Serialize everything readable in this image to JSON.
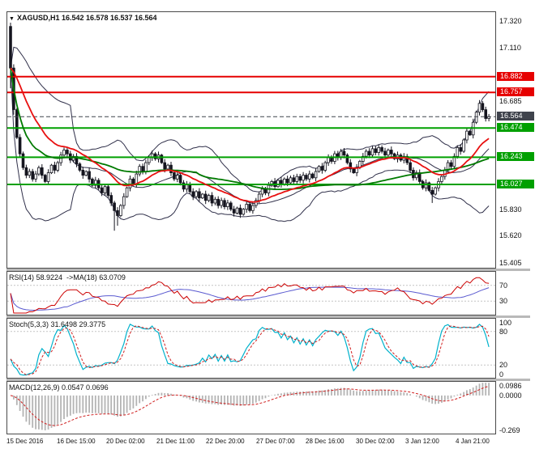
{
  "window": {
    "title": "XAGUSD,H1 16.542 16.578 16.537 16.564",
    "dropdown_icon": "▼"
  },
  "colors": {
    "up": "#ffffff",
    "down": "#15151f",
    "bollinger": "#30304a",
    "ma_fast": "#e81010",
    "ma_slow": "#007a00",
    "resistance": "#e60000",
    "support": "#00a000",
    "current": "#3f434c",
    "rsi": "#cc0000",
    "rsi_ma": "#5a5ad0",
    "stoch_main": "#00b2cc",
    "stoch_signal": "#d02020",
    "macd_hist": "#b4b4b4",
    "macd_signal": "#d02020"
  },
  "chart_data": {
    "type": "candlestick",
    "symbol": "XAGUSD",
    "timeframe": "H1",
    "current_ohlc": {
      "open": 16.542,
      "high": 16.578,
      "low": 16.537,
      "close": 16.564
    },
    "price_axis": {
      "range": [
        15.36,
        17.4
      ],
      "ticks": [
        17.32,
        17.11,
        16.685,
        15.83,
        15.62,
        15.405
      ]
    },
    "levels": [
      {
        "price": 16.882,
        "type": "resistance"
      },
      {
        "price": 16.757,
        "type": "resistance"
      },
      {
        "price": 16.564,
        "type": "current"
      },
      {
        "price": 16.474,
        "type": "support"
      },
      {
        "price": 16.243,
        "type": "support"
      },
      {
        "price": 16.027,
        "type": "support"
      }
    ],
    "time_labels": [
      "15 Dec 2016",
      "16 Dec 15:00",
      "20 Dec 02:00",
      "21 Dec 11:00",
      "22 Dec 20:00",
      "27 Dec 07:00",
      "28 Dec 16:00",
      "30 Dec 02:00",
      "3 Jan 12:00",
      "4 Jan 21:00"
    ],
    "open_first": 17.28,
    "closes": [
      16.95,
      16.62,
      16.4,
      16.27,
      16.16,
      16.1,
      16.13,
      16.07,
      16.11,
      16.16,
      16.1,
      16.05,
      16.12,
      16.18,
      16.14,
      16.2,
      16.26,
      16.3,
      16.27,
      16.22,
      16.25,
      16.19,
      16.14,
      16.1,
      16.13,
      16.07,
      16.02,
      16.06,
      16.0,
      15.96,
      16.01,
      15.94,
      15.88,
      15.82,
      15.78,
      15.86,
      15.93,
      16.0,
      16.07,
      16.03,
      16.11,
      16.17,
      16.13,
      16.2,
      16.24,
      16.27,
      16.23,
      16.26,
      16.2,
      16.15,
      16.18,
      16.12,
      16.07,
      16.1,
      16.04,
      15.99,
      16.03,
      15.97,
      15.93,
      15.97,
      15.92,
      15.95,
      15.9,
      15.94,
      15.88,
      15.91,
      15.86,
      15.9,
      15.85,
      15.88,
      15.83,
      15.8,
      15.84,
      15.79,
      15.83,
      15.87,
      15.82,
      15.86,
      15.9,
      15.95,
      15.99,
      15.96,
      16.02,
      16.05,
      16.01,
      16.06,
      16.03,
      16.07,
      16.04,
      16.08,
      16.05,
      16.09,
      16.06,
      16.1,
      16.07,
      16.11,
      16.08,
      16.13,
      16.17,
      16.14,
      16.2,
      16.24,
      16.21,
      16.27,
      16.24,
      16.29,
      16.26,
      16.2,
      16.15,
      16.12,
      16.16,
      16.21,
      16.25,
      16.29,
      16.26,
      16.31,
      16.28,
      16.32,
      16.29,
      16.26,
      16.3,
      16.27,
      16.23,
      16.26,
      16.22,
      16.25,
      16.2,
      16.14,
      16.08,
      16.12,
      16.05,
      16.0,
      16.04,
      15.98,
      15.95,
      16.0,
      16.05,
      16.09,
      16.14,
      16.2,
      16.17,
      16.25,
      16.32,
      16.29,
      16.38,
      16.45,
      16.42,
      16.52,
      16.6,
      16.67,
      16.62,
      16.55,
      16.564
    ],
    "wick_overrides": {
      "0": [
        17.31,
        16.79
      ],
      "1": [
        16.98,
        16.58
      ],
      "33": [
        null,
        15.66
      ],
      "34": [
        null,
        15.7
      ],
      "134": [
        null,
        15.88
      ]
    },
    "indicators": {
      "rsi": {
        "label": "RSI(14) 58.9224  ->MA(18) 63.0709",
        "period": 14,
        "ma_period": 18,
        "value": 58.9224,
        "ma_value": 63.0709,
        "levels": [
          70,
          30
        ],
        "axis": [
          "70",
          "30"
        ]
      },
      "stoch": {
        "label": "Stoch(5,3,3) 31.6498 29.3775",
        "k": 5,
        "d": 3,
        "slowing": 3,
        "value": 31.6498,
        "signal_value": 29.3775,
        "levels": [
          80,
          20
        ],
        "axis": [
          "100",
          "80",
          "20",
          "0"
        ]
      },
      "macd": {
        "label": "MACD(12,26,9) 0.0547 0.0696",
        "fast": 12,
        "slow": 26,
        "signal": 9,
        "value": 0.0547,
        "signal_value": 0.0696,
        "axis": [
          "0.0986",
          "0.0000",
          "-0.269"
        ]
      }
    }
  }
}
